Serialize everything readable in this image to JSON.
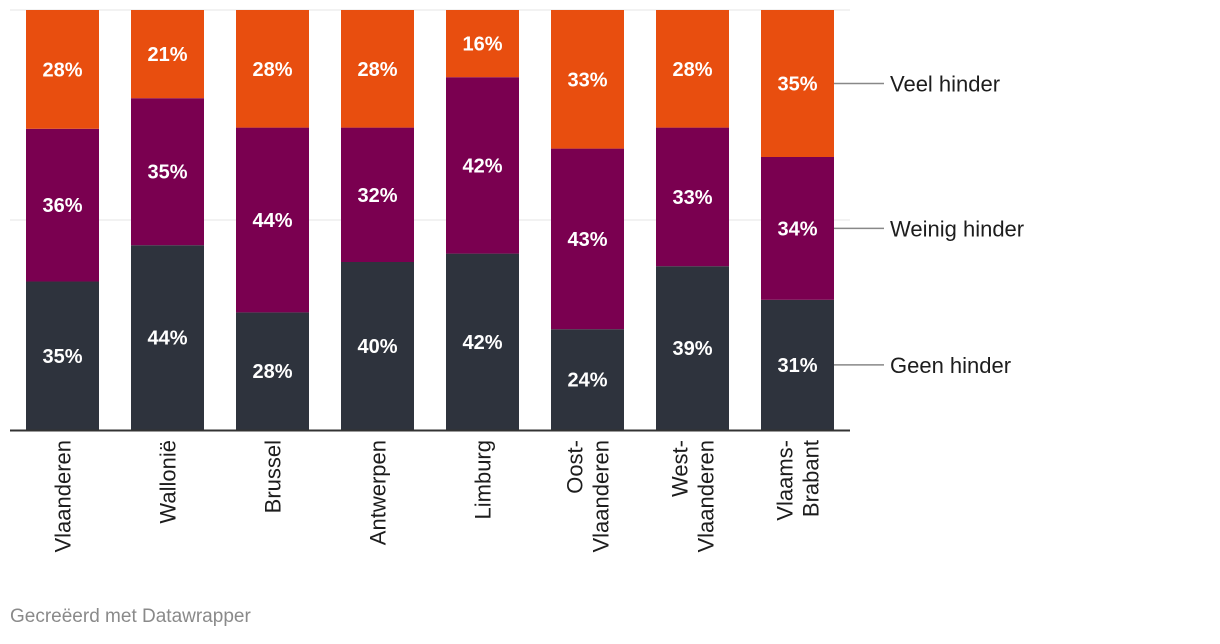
{
  "chart_data": {
    "type": "bar",
    "stacked": true,
    "categories": [
      [
        "Vlaanderen"
      ],
      [
        "Wallonië"
      ],
      [
        "Brussel"
      ],
      [
        "Antwerpen"
      ],
      [
        "Limburg"
      ],
      [
        "Oost-",
        "Vlaanderen"
      ],
      [
        "West-",
        "Vlaanderen"
      ],
      [
        "Vlaams-",
        "Brabant"
      ]
    ],
    "series": [
      {
        "name": "Geen hinder",
        "color": "#2e333d",
        "values": [
          35,
          44,
          28,
          40,
          42,
          24,
          39,
          31
        ],
        "labels": [
          "35%",
          "44%",
          "28%",
          "40%",
          "42%",
          "24%",
          "39%",
          "31%"
        ]
      },
      {
        "name": "Weinig hinder",
        "color": "#7a0050",
        "values": [
          36,
          35,
          44,
          32,
          42,
          43,
          33,
          34
        ],
        "labels": [
          "36%",
          "35%",
          "44%",
          "32%",
          "42%",
          "43%",
          "33%",
          "34%"
        ]
      },
      {
        "name": "Veel hinder",
        "color": "#e84e0f",
        "values": [
          28,
          21,
          28,
          28,
          16,
          33,
          28,
          35
        ],
        "labels": [
          "28%",
          "21%",
          "28%",
          "28%",
          "16%",
          "33%",
          "28%",
          "35%"
        ]
      }
    ],
    "ylim": [
      0,
      100
    ],
    "gridlines": [
      50,
      100
    ],
    "legend_position": "right",
    "title": "",
    "xlabel": "",
    "ylabel": ""
  },
  "footer": {
    "credit": "Gecreëerd met Datawrapper"
  }
}
